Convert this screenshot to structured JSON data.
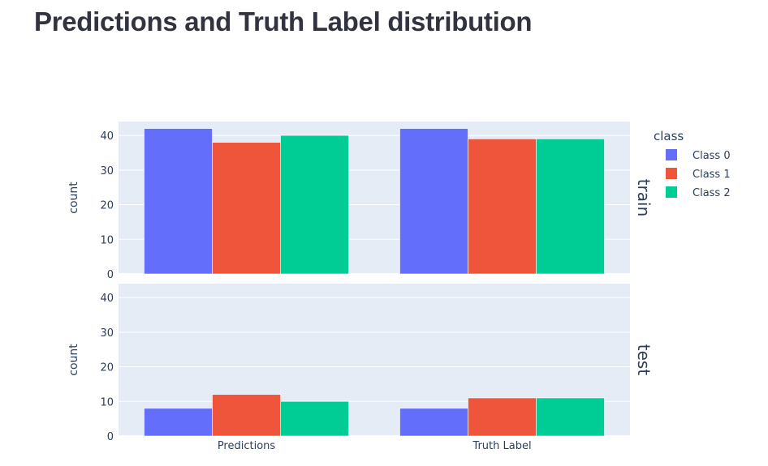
{
  "page": {
    "title": "Predictions and Truth Label distribution"
  },
  "chart_data": {
    "type": "bar",
    "barmode": "group",
    "categories": [
      "Predictions",
      "Truth Label"
    ],
    "legend": {
      "title": "class",
      "position": "right"
    },
    "colors": {
      "Class 0": "#636efa",
      "Class 1": "#ef553b",
      "Class 2": "#00cc96"
    },
    "ylim": [
      0,
      44
    ],
    "yticks": [
      0,
      10,
      20,
      30,
      40
    ],
    "grid": true,
    "facets": [
      {
        "label": "train",
        "ylabel": "count",
        "series": [
          {
            "name": "Class 0",
            "values": [
              42,
              42
            ]
          },
          {
            "name": "Class 1",
            "values": [
              38,
              39
            ]
          },
          {
            "name": "Class 2",
            "values": [
              40,
              39
            ]
          }
        ]
      },
      {
        "label": "test",
        "ylabel": "count",
        "series": [
          {
            "name": "Class 0",
            "values": [
              8,
              8
            ]
          },
          {
            "name": "Class 1",
            "values": [
              12,
              11
            ]
          },
          {
            "name": "Class 2",
            "values": [
              10,
              11
            ]
          }
        ]
      }
    ]
  }
}
